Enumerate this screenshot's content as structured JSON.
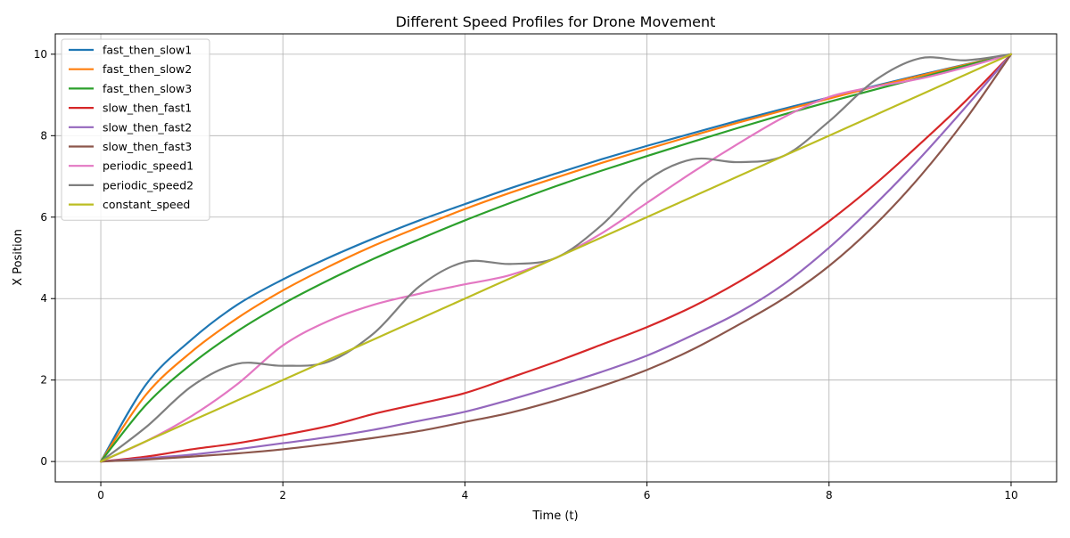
{
  "chart_data": {
    "type": "line",
    "title": "Different Speed Profiles for Drone Movement",
    "xlabel": "Time (t)",
    "ylabel": "X Position",
    "xlim": [
      -0.5,
      10.5
    ],
    "ylim": [
      -0.5,
      10.5
    ],
    "xticks": [
      0,
      2,
      4,
      6,
      8,
      10
    ],
    "yticks": [
      0,
      2,
      4,
      6,
      8,
      10
    ],
    "xtick_labels": [
      "0",
      "2",
      "4",
      "6",
      "8",
      "10"
    ],
    "ytick_labels": [
      "0",
      "2",
      "4",
      "6",
      "8",
      "10"
    ],
    "grid": true,
    "legend_position": "top-left",
    "x": [
      0,
      0.5,
      1,
      1.5,
      2,
      2.5,
      3,
      3.5,
      4,
      4.5,
      5,
      5.5,
      6,
      6.5,
      7,
      7.5,
      8,
      8.5,
      9,
      9.5,
      10
    ],
    "series": [
      {
        "name": "fast_then_slow1",
        "color": "#1f77b4",
        "values": [
          0,
          1.9,
          3.0,
          3.85,
          4.47,
          5.0,
          5.48,
          5.92,
          6.32,
          6.71,
          7.07,
          7.42,
          7.75,
          8.06,
          8.37,
          8.66,
          8.94,
          9.22,
          9.49,
          9.75,
          10
        ]
      },
      {
        "name": "fast_then_slow2",
        "color": "#ff7f0e",
        "values": [
          0,
          1.65,
          2.7,
          3.52,
          4.2,
          4.78,
          5.3,
          5.76,
          6.2,
          6.6,
          6.97,
          7.33,
          7.67,
          8.0,
          8.32,
          8.62,
          8.91,
          9.2,
          9.47,
          9.74,
          10
        ]
      },
      {
        "name": "fast_then_slow3",
        "color": "#2ca02c",
        "values": [
          0,
          1.4,
          2.4,
          3.2,
          3.87,
          4.45,
          4.98,
          5.46,
          5.92,
          6.35,
          6.76,
          7.14,
          7.5,
          7.85,
          8.19,
          8.52,
          8.83,
          9.13,
          9.42,
          9.72,
          10
        ]
      },
      {
        "name": "slow_then_fast1",
        "color": "#d62728",
        "values": [
          0,
          0.12,
          0.3,
          0.45,
          0.65,
          0.87,
          1.17,
          1.42,
          1.68,
          2.06,
          2.45,
          2.87,
          3.3,
          3.8,
          4.4,
          5.1,
          5.9,
          6.8,
          7.8,
          8.85,
          10
        ]
      },
      {
        "name": "slow_then_fast2",
        "color": "#9467bd",
        "values": [
          0,
          0.08,
          0.17,
          0.3,
          0.45,
          0.6,
          0.78,
          1.0,
          1.22,
          1.52,
          1.85,
          2.2,
          2.6,
          3.1,
          3.65,
          4.35,
          5.25,
          6.3,
          7.45,
          8.7,
          10
        ]
      },
      {
        "name": "slow_then_fast3",
        "color": "#8c564b",
        "values": [
          0,
          0.05,
          0.12,
          0.2,
          0.3,
          0.43,
          0.58,
          0.75,
          0.97,
          1.2,
          1.5,
          1.85,
          2.25,
          2.75,
          3.35,
          4.0,
          4.8,
          5.8,
          7.0,
          8.4,
          10
        ]
      },
      {
        "name": "periodic_speed1",
        "color": "#e377c2",
        "values": [
          0,
          0.5,
          1.12,
          1.9,
          2.85,
          3.45,
          3.85,
          4.12,
          4.35,
          4.58,
          5.0,
          5.6,
          6.35,
          7.1,
          7.8,
          8.45,
          8.95,
          9.2,
          9.4,
          9.68,
          10
        ]
      },
      {
        "name": "periodic_speed2",
        "color": "#7f7f7f",
        "values": [
          0,
          0.85,
          1.85,
          2.4,
          2.35,
          2.45,
          3.15,
          4.3,
          4.9,
          4.85,
          5.0,
          5.8,
          6.9,
          7.42,
          7.35,
          7.5,
          8.35,
          9.35,
          9.9,
          9.85,
          10
        ]
      },
      {
        "name": "constant_speed",
        "color": "#bcbd22",
        "values": [
          0,
          0.5,
          1.0,
          1.5,
          2.0,
          2.5,
          3.0,
          3.5,
          4.0,
          4.5,
          5.0,
          5.5,
          6.0,
          6.5,
          7.0,
          7.5,
          8.0,
          8.5,
          9.0,
          9.5,
          10
        ]
      }
    ]
  }
}
